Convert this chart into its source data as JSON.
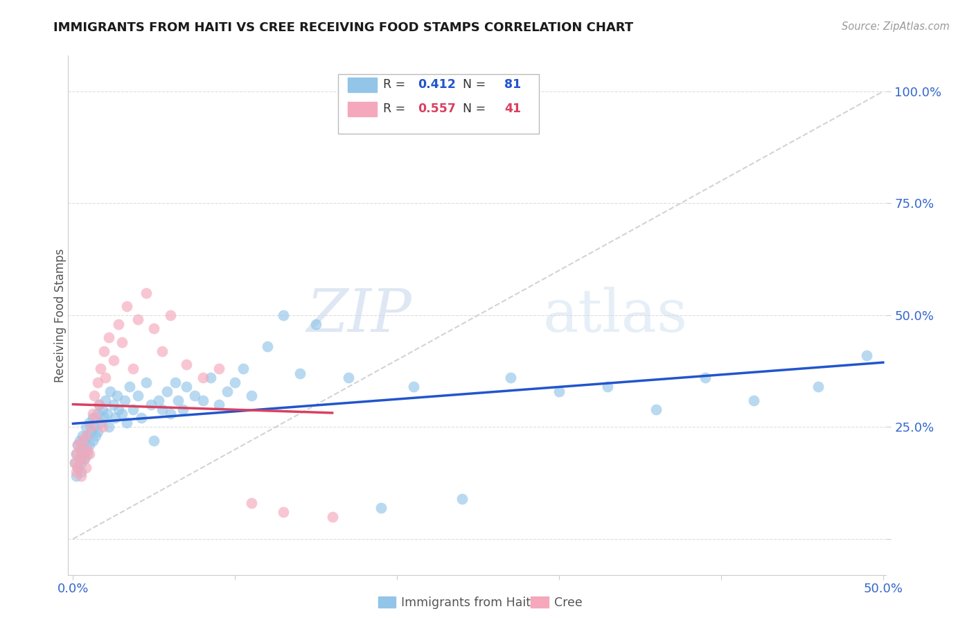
{
  "title": "IMMIGRANTS FROM HAITI VS CREE RECEIVING FOOD STAMPS CORRELATION CHART",
  "source": "Source: ZipAtlas.com",
  "ylabel_label": "Receiving Food Stamps",
  "xlim": [
    -0.003,
    0.502
  ],
  "ylim": [
    -0.08,
    1.08
  ],
  "haiti_color": "#92C5E8",
  "cree_color": "#F5A8BB",
  "haiti_line_color": "#2255CC",
  "cree_line_color": "#D94060",
  "ref_line_color": "#C8C8C8",
  "haiti_R": 0.412,
  "haiti_N": 81,
  "cree_R": 0.557,
  "cree_N": 41,
  "legend_label_haiti": "Immigrants from Haiti",
  "legend_label_cree": "Cree",
  "watermark_zip": "ZIP",
  "watermark_atlas": "atlas",
  "haiti_scatter_x": [
    0.001,
    0.002,
    0.002,
    0.003,
    0.003,
    0.004,
    0.004,
    0.005,
    0.005,
    0.005,
    0.006,
    0.006,
    0.007,
    0.007,
    0.008,
    0.008,
    0.009,
    0.009,
    0.01,
    0.01,
    0.011,
    0.012,
    0.012,
    0.013,
    0.014,
    0.015,
    0.015,
    0.016,
    0.017,
    0.018,
    0.019,
    0.02,
    0.021,
    0.022,
    0.023,
    0.025,
    0.026,
    0.027,
    0.028,
    0.03,
    0.032,
    0.033,
    0.035,
    0.037,
    0.04,
    0.042,
    0.045,
    0.048,
    0.05,
    0.053,
    0.055,
    0.058,
    0.06,
    0.063,
    0.065,
    0.068,
    0.07,
    0.075,
    0.08,
    0.085,
    0.09,
    0.095,
    0.1,
    0.105,
    0.11,
    0.12,
    0.13,
    0.14,
    0.15,
    0.17,
    0.19,
    0.21,
    0.24,
    0.27,
    0.3,
    0.33,
    0.36,
    0.39,
    0.42,
    0.46,
    0.49
  ],
  "haiti_scatter_y": [
    0.17,
    0.19,
    0.14,
    0.21,
    0.16,
    0.18,
    0.22,
    0.15,
    0.2,
    0.17,
    0.19,
    0.23,
    0.18,
    0.22,
    0.2,
    0.25,
    0.19,
    0.23,
    0.21,
    0.26,
    0.24,
    0.22,
    0.27,
    0.25,
    0.23,
    0.28,
    0.24,
    0.3,
    0.26,
    0.29,
    0.27,
    0.31,
    0.28,
    0.25,
    0.33,
    0.3,
    0.27,
    0.32,
    0.29,
    0.28,
    0.31,
    0.26,
    0.34,
    0.29,
    0.32,
    0.27,
    0.35,
    0.3,
    0.22,
    0.31,
    0.29,
    0.33,
    0.28,
    0.35,
    0.31,
    0.29,
    0.34,
    0.32,
    0.31,
    0.36,
    0.3,
    0.33,
    0.35,
    0.38,
    0.32,
    0.43,
    0.5,
    0.37,
    0.48,
    0.36,
    0.07,
    0.34,
    0.09,
    0.36,
    0.33,
    0.34,
    0.29,
    0.36,
    0.31,
    0.34,
    0.41
  ],
  "cree_scatter_x": [
    0.001,
    0.002,
    0.002,
    0.003,
    0.003,
    0.004,
    0.005,
    0.005,
    0.006,
    0.007,
    0.008,
    0.008,
    0.009,
    0.01,
    0.011,
    0.012,
    0.013,
    0.014,
    0.015,
    0.016,
    0.017,
    0.018,
    0.019,
    0.02,
    0.022,
    0.025,
    0.028,
    0.03,
    0.033,
    0.037,
    0.04,
    0.045,
    0.05,
    0.055,
    0.06,
    0.07,
    0.08,
    0.09,
    0.11,
    0.13,
    0.16
  ],
  "cree_scatter_y": [
    0.17,
    0.15,
    0.19,
    0.16,
    0.21,
    0.18,
    0.14,
    0.2,
    0.22,
    0.18,
    0.16,
    0.23,
    0.2,
    0.19,
    0.25,
    0.28,
    0.32,
    0.27,
    0.35,
    0.3,
    0.38,
    0.25,
    0.42,
    0.36,
    0.45,
    0.4,
    0.48,
    0.44,
    0.52,
    0.38,
    0.49,
    0.55,
    0.47,
    0.42,
    0.5,
    0.39,
    0.36,
    0.38,
    0.08,
    0.06,
    0.05
  ],
  "grid_color": "#DDDDDD",
  "spine_color": "#CCCCCC",
  "tick_color": "#3366CC",
  "ytick_vals": [
    0.0,
    0.25,
    0.5,
    0.75,
    1.0
  ],
  "ytick_labels": [
    "",
    "25.0%",
    "50.0%",
    "75.0%",
    "100.0%"
  ],
  "xtick_vals": [
    0.0,
    0.1,
    0.2,
    0.3,
    0.4,
    0.5
  ],
  "xtick_labels": [
    "0.0%",
    "",
    "",
    "",
    "",
    "50.0%"
  ]
}
